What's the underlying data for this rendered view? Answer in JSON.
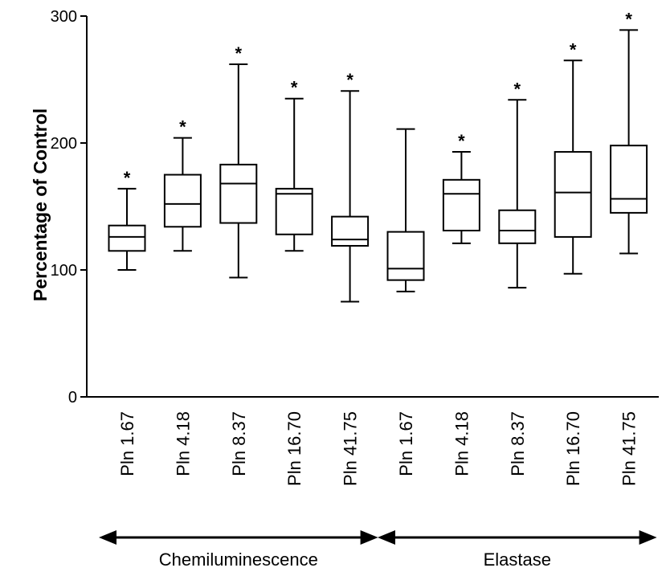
{
  "chart_data": {
    "type": "boxplot",
    "ylabel": "Percentage of Control",
    "ylim": [
      0,
      300
    ],
    "yticks": [
      0,
      100,
      200,
      300
    ],
    "significance_marker": "*",
    "categories": [
      "Pln 1.67",
      "Pln 4.18",
      "Pln 8.37",
      "Pln 16.70",
      "Pln 41.75",
      "Pln 1.67",
      "Pln 4.18",
      "Pln 8.37",
      "Pln 16.70",
      "Pln 41.75"
    ],
    "boxes": [
      {
        "min": 100,
        "q1": 115,
        "median": 126,
        "q3": 135,
        "max": 164,
        "significant": true
      },
      {
        "min": 115,
        "q1": 134,
        "median": 152,
        "q3": 175,
        "max": 204,
        "significant": true
      },
      {
        "min": 94,
        "q1": 137,
        "median": 168,
        "q3": 183,
        "max": 262,
        "significant": true
      },
      {
        "min": 115,
        "q1": 128,
        "median": 160,
        "q3": 164,
        "max": 235,
        "significant": true
      },
      {
        "min": 75,
        "q1": 119,
        "median": 124,
        "q3": 142,
        "max": 241,
        "significant": true
      },
      {
        "min": 83,
        "q1": 92,
        "median": 101,
        "q3": 130,
        "max": 211,
        "significant": false
      },
      {
        "min": 121,
        "q1": 131,
        "median": 160,
        "q3": 171,
        "max": 193,
        "significant": true
      },
      {
        "min": 86,
        "q1": 121,
        "median": 131,
        "q3": 147,
        "max": 234,
        "significant": true
      },
      {
        "min": 97,
        "q1": 126,
        "median": 161,
        "q3": 193,
        "max": 265,
        "significant": true
      },
      {
        "min": 113,
        "q1": 145,
        "median": 156,
        "q3": 198,
        "max": 289,
        "significant": true
      }
    ],
    "groups": [
      {
        "label": "Chemiluminescence",
        "from": 0,
        "to": 4
      },
      {
        "label": "Elastase",
        "from": 5,
        "to": 9
      }
    ]
  }
}
